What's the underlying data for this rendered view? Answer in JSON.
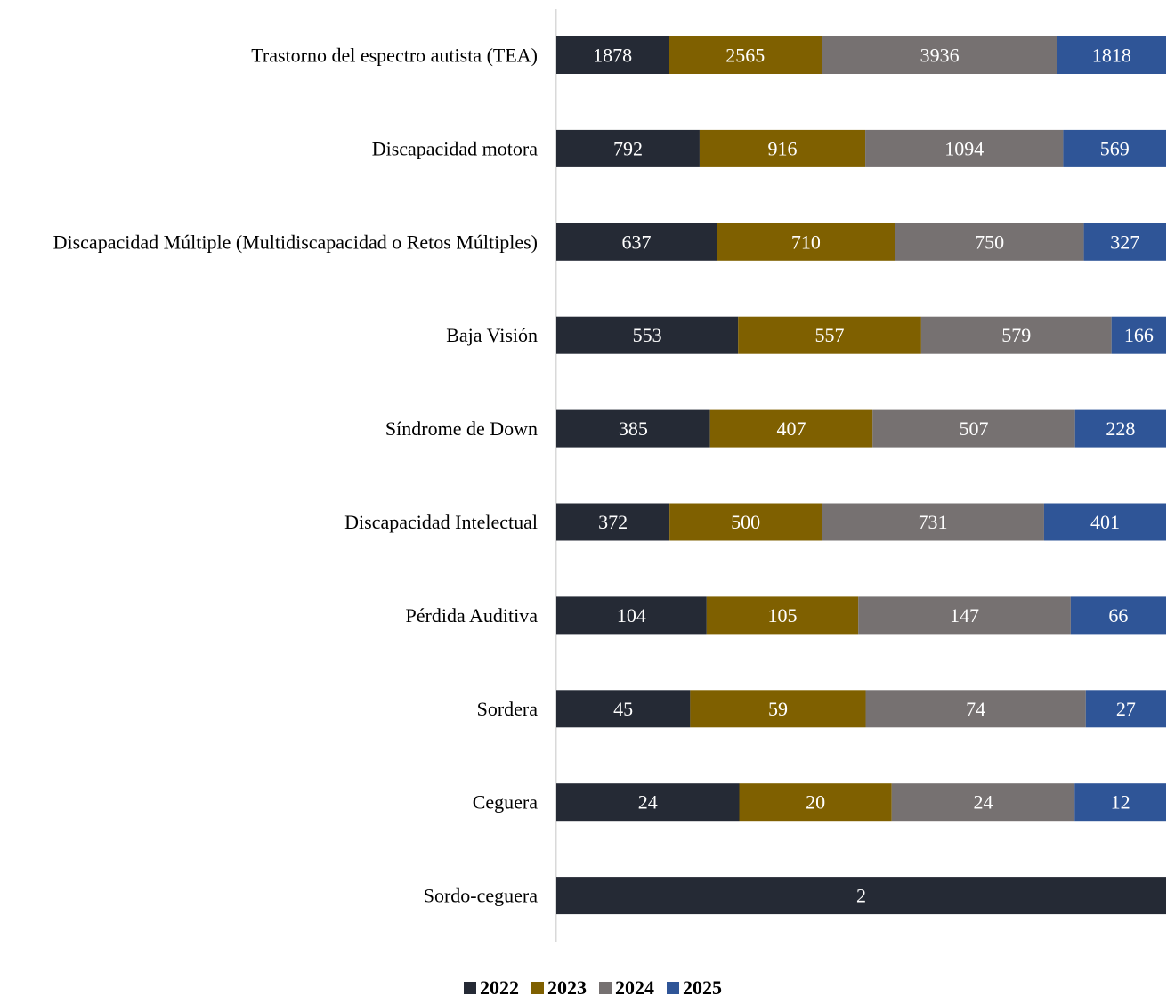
{
  "chart_data": {
    "type": "bar",
    "orientation": "horizontal",
    "stacking": "percent",
    "categories": [
      "Trastorno del espectro autista (TEA)",
      "Discapacidad motora",
      "Discapacidad Múltiple (Multidiscapacidad o Retos Múltiples)",
      "Baja Visión",
      "Síndrome de Down",
      "Discapacidad Intelectual",
      "Pérdida Auditiva",
      "Sordera",
      "Ceguera",
      "Sordo-ceguera"
    ],
    "series": [
      {
        "name": "2022",
        "color": "#252a35",
        "values": [
          1878,
          792,
          637,
          553,
          385,
          372,
          104,
          45,
          24,
          2
        ]
      },
      {
        "name": "2023",
        "color": "#7f6000",
        "values": [
          2565,
          916,
          710,
          557,
          407,
          500,
          105,
          59,
          20,
          null
        ]
      },
      {
        "name": "2024",
        "color": "#767171",
        "values": [
          3936,
          1094,
          750,
          579,
          507,
          731,
          147,
          74,
          24,
          null
        ]
      },
      {
        "name": "2025",
        "color": "#2f5597",
        "values": [
          1818,
          569,
          327,
          166,
          228,
          401,
          66,
          27,
          12,
          null
        ]
      }
    ],
    "title": "",
    "xlabel": "",
    "ylabel": "",
    "legend_position": "bottom",
    "grid": false,
    "data_labels": true
  }
}
